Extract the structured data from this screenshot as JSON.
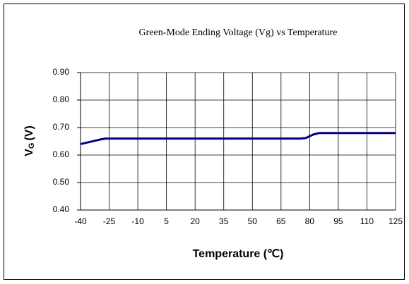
{
  "chart_data": {
    "type": "line",
    "title": "Green-Mode Ending Voltage (Vg) vs Temperature",
    "xlabel": "Temperature (℃)",
    "ylabel": {
      "main": "V",
      "sub": "G",
      "unit": "(V)"
    },
    "x": [
      -40,
      -35,
      -30,
      -27,
      0,
      40,
      75,
      78,
      82,
      85,
      125
    ],
    "series": [
      {
        "name": "Vg",
        "color": "#000080",
        "values": [
          0.64,
          0.648,
          0.656,
          0.66,
          0.66,
          0.66,
          0.66,
          0.662,
          0.675,
          0.68,
          0.68
        ]
      }
    ],
    "xlim": [
      -40,
      125
    ],
    "xticks": [
      -40,
      -25,
      -10,
      5,
      20,
      35,
      50,
      65,
      80,
      95,
      110,
      125
    ],
    "ylim": [
      0.4,
      0.9
    ],
    "yticks": [
      {
        "value": 0.4,
        "label": "0.40"
      },
      {
        "value": 0.5,
        "label": "0.50"
      },
      {
        "value": 0.6,
        "label": "0.60"
      },
      {
        "value": 0.7,
        "label": "0.70"
      },
      {
        "value": 0.8,
        "label": "0.80"
      },
      {
        "value": 0.9,
        "label": "0.90"
      }
    ],
    "grid": true
  }
}
